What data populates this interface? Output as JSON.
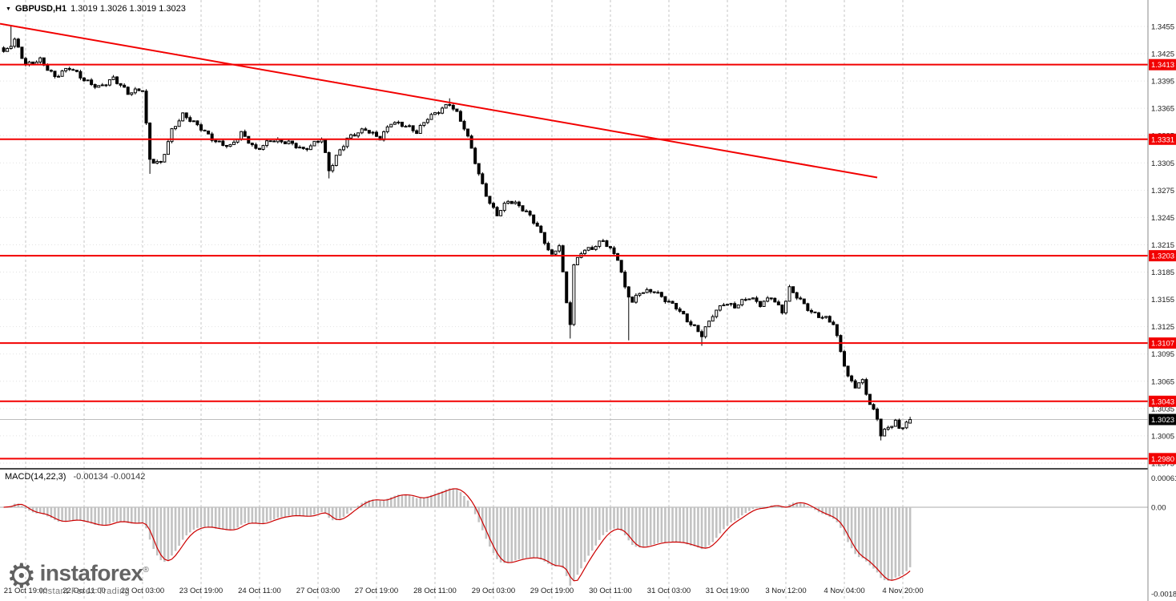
{
  "header": {
    "symbol_timeframe": "GBPUSD,H1",
    "ohlc": "1.3019 1.3026 1.3019 1.3023",
    "dropdown_glyph": "▼"
  },
  "indicator": {
    "name": "MACD(14,22,3)",
    "values": "-0.00134 -0.00142"
  },
  "watermark": {
    "brand": "instaforex",
    "registered": "®",
    "tagline": "Instant Forex Trading"
  },
  "colors": {
    "level_red": "#f20000",
    "signal_red": "#cc0000",
    "histogram_gray": "#c2c2c2",
    "current_badge_black": "#000000",
    "grid_gray": "#c6c6c6"
  },
  "chart_data": {
    "type": "candlestick",
    "symbol": "GBPUSD",
    "timeframe": "H1",
    "price_axis": {
      "min": 1.2975,
      "max": 1.3455,
      "tick_step": 0.003,
      "ticks": [
        "1.3455",
        "1.3425",
        "1.3395",
        "1.3365",
        "1.3335",
        "1.3305",
        "1.3275",
        "1.3245",
        "1.3215",
        "1.3185",
        "1.3155",
        "1.3125",
        "1.3095",
        "1.3065",
        "1.3035",
        "1.3005",
        "1.2975"
      ]
    },
    "time_labels": [
      "21 Oct 19:00",
      "22 Oct 11:00",
      "23 Oct 03:00",
      "23 Oct 19:00",
      "24 Oct 11:00",
      "27 Oct 03:00",
      "27 Oct 19:00",
      "28 Oct 11:00",
      "29 Oct 03:00",
      "29 Oct 19:00",
      "30 Oct 11:00",
      "31 Oct 03:00",
      "31 Oct 19:00",
      "3 Nov 12:00",
      "4 Nov 04:00",
      "4 Nov 20:00"
    ],
    "levels": [
      {
        "price": 1.3413,
        "label": "1.3413"
      },
      {
        "price": 1.3331,
        "label": "1.3331"
      },
      {
        "price": 1.3203,
        "label": "1.3203"
      },
      {
        "price": 1.3107,
        "label": "1.3107"
      },
      {
        "price": 1.3043,
        "label": "1.3043"
      },
      {
        "price": 1.298,
        "label": "1.2980"
      }
    ],
    "current_price": 1.3023,
    "current_price_label": "1.3023",
    "trendline": {
      "start_index": -1,
      "start_price": 1.3458,
      "end_index": 239,
      "end_price": 1.3289
    },
    "candles": {
      "count": 249,
      "last_ohlc": [
        1.3019,
        1.3026,
        1.3019,
        1.3023
      ],
      "path_waypoints": [
        [
          0,
          1.3425
        ],
        [
          3,
          1.3438
        ],
        [
          6,
          1.3412
        ],
        [
          10,
          1.342
        ],
        [
          14,
          1.34
        ],
        [
          18,
          1.3408
        ],
        [
          22,
          1.3396
        ],
        [
          26,
          1.339
        ],
        [
          30,
          1.3398
        ],
        [
          34,
          1.338
        ],
        [
          38,
          1.3386
        ],
        [
          40,
          1.331
        ],
        [
          43,
          1.3306
        ],
        [
          46,
          1.334
        ],
        [
          49,
          1.3356
        ],
        [
          54,
          1.3344
        ],
        [
          58,
          1.333
        ],
        [
          62,
          1.3322
        ],
        [
          65,
          1.3336
        ],
        [
          69,
          1.332
        ],
        [
          73,
          1.3332
        ],
        [
          78,
          1.3326
        ],
        [
          82,
          1.3318
        ],
        [
          87,
          1.3334
        ],
        [
          89,
          1.3298
        ],
        [
          91,
          1.3312
        ],
        [
          94,
          1.333
        ],
        [
          99,
          1.3342
        ],
        [
          103,
          1.3334
        ],
        [
          106,
          1.335
        ],
        [
          110,
          1.3344
        ],
        [
          113,
          1.3338
        ],
        [
          116,
          1.3356
        ],
        [
          120,
          1.3366
        ],
        [
          122,
          1.337
        ],
        [
          124,
          1.3358
        ],
        [
          126,
          1.3342
        ],
        [
          128,
          1.332
        ],
        [
          130,
          1.3292
        ],
        [
          133,
          1.3262
        ],
        [
          135,
          1.325
        ],
        [
          138,
          1.3263
        ],
        [
          141,
          1.3256
        ],
        [
          144,
          1.3246
        ],
        [
          146,
          1.3236
        ],
        [
          148,
          1.322
        ],
        [
          150,
          1.3204
        ],
        [
          152,
          1.3216
        ],
        [
          154,
          1.315
        ],
        [
          155,
          1.3128
        ],
        [
          156,
          1.319
        ],
        [
          158,
          1.3206
        ],
        [
          161,
          1.3212
        ],
        [
          164,
          1.3222
        ],
        [
          168,
          1.32
        ],
        [
          170,
          1.3166
        ],
        [
          172,
          1.315
        ],
        [
          174,
          1.3162
        ],
        [
          178,
          1.3166
        ],
        [
          181,
          1.3156
        ],
        [
          184,
          1.3146
        ],
        [
          187,
          1.313
        ],
        [
          191,
          1.3116
        ],
        [
          194,
          1.314
        ],
        [
          197,
          1.3152
        ],
        [
          200,
          1.3146
        ],
        [
          204,
          1.3156
        ],
        [
          207,
          1.315
        ],
        [
          210,
          1.316
        ],
        [
          213,
          1.3142
        ],
        [
          215,
          1.3166
        ],
        [
          218,
          1.3152
        ],
        [
          221,
          1.314
        ],
        [
          225,
          1.3136
        ],
        [
          227,
          1.313
        ],
        [
          229,
          1.3098
        ],
        [
          231,
          1.3068
        ],
        [
          233,
          1.3058
        ],
        [
          235,
          1.3064
        ],
        [
          237,
          1.304
        ],
        [
          239,
          1.3026
        ],
        [
          240,
          1.3008
        ],
        [
          242,
          1.3016
        ],
        [
          244,
          1.3021
        ],
        [
          245,
          1.3012
        ],
        [
          247,
          1.3018
        ],
        [
          248,
          1.3023
        ]
      ],
      "wick_spikes": [
        {
          "i": 2,
          "high": 1.3455
        },
        {
          "i": 40,
          "low": 1.3293
        },
        {
          "i": 89,
          "low": 1.3288
        },
        {
          "i": 122,
          "high": 1.3376
        },
        {
          "i": 155,
          "low": 1.3112
        },
        {
          "i": 171,
          "low": 1.311
        },
        {
          "i": 191,
          "low": 1.3104
        },
        {
          "i": 240,
          "low": 1.3
        }
      ]
    },
    "macd": {
      "params": [
        14,
        22,
        3
      ],
      "current_macd": -0.00134,
      "current_signal": -0.00142,
      "axis_labels": [
        "0.00061",
        "0.00",
        "-0.0018"
      ],
      "axis_values": [
        0.00061,
        0,
        -0.0018
      ]
    }
  }
}
